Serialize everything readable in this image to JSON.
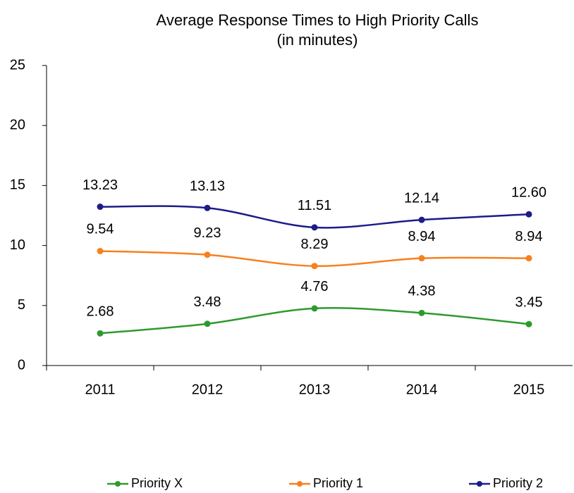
{
  "chart_data": {
    "type": "line",
    "title": "Average Response Times to High Priority Calls",
    "subtitle": "(in minutes)",
    "categories": [
      "2011",
      "2012",
      "2013",
      "2014",
      "2015"
    ],
    "series": [
      {
        "name": "Priority X",
        "color": "#2e9a2e",
        "values": [
          2.68,
          3.48,
          4.76,
          4.38,
          3.45
        ],
        "value_labels": [
          "2.68",
          "3.48",
          "4.76",
          "4.38",
          "3.45"
        ]
      },
      {
        "name": "Priority 1",
        "color": "#f7801e",
        "values": [
          9.54,
          9.23,
          8.29,
          8.94,
          8.94
        ],
        "value_labels": [
          "9.54",
          "9.23",
          "8.29",
          "8.94",
          "8.94"
        ]
      },
      {
        "name": "Priority 2",
        "color": "#1c1c8a",
        "values": [
          13.23,
          13.13,
          11.51,
          12.14,
          12.6
        ],
        "value_labels": [
          "13.23",
          "13.13",
          "11.51",
          "12.14",
          "12.60"
        ]
      }
    ],
    "ylim": [
      0,
      25
    ],
    "yticks": [
      0,
      5,
      10,
      15,
      20,
      25
    ],
    "grid": false,
    "legend": "bottom",
    "smooth": true
  }
}
